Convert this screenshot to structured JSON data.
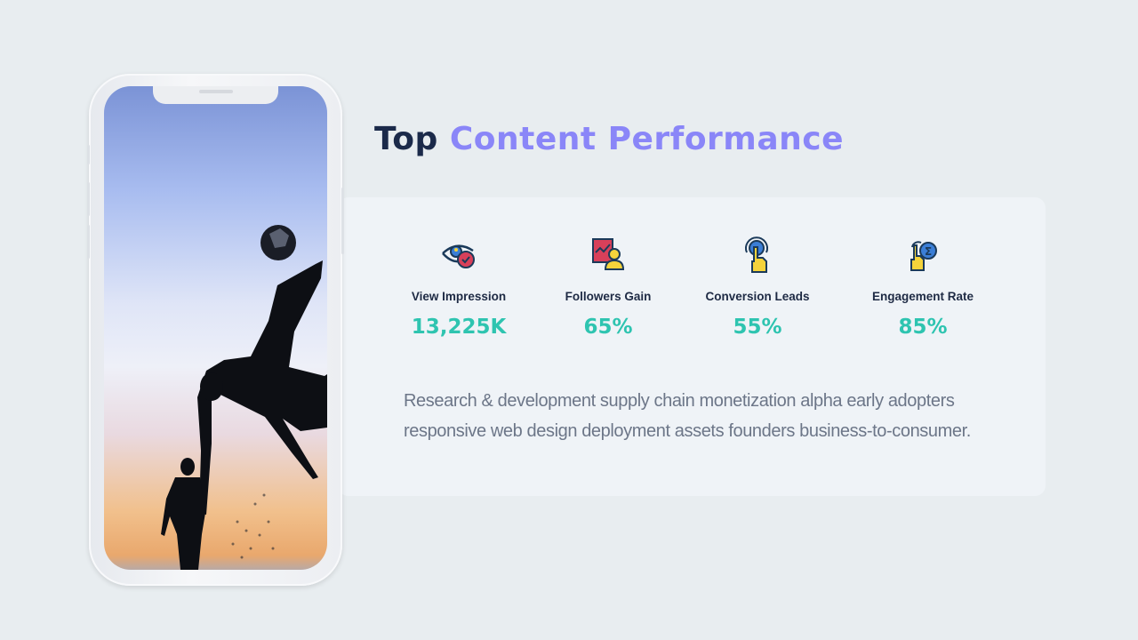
{
  "title": {
    "part1": "Top",
    "part2": "Content Performance"
  },
  "colors": {
    "background": "#e8edf0",
    "card": "#eff3f7",
    "title_dark": "#1b2a4a",
    "title_accent": "#8a86f8",
    "value": "#2ec4b0"
  },
  "phone": {
    "image": "silhouette of person doing bicycle kick with soccer ball at sunset beach"
  },
  "stats": [
    {
      "icon": "eye-check-icon",
      "label": "View Impression",
      "value": "13,225K"
    },
    {
      "icon": "chart-user-icon",
      "label": "Followers Gain",
      "value": "65%"
    },
    {
      "icon": "tap-finger-icon",
      "label": "Conversion Leads",
      "value": "55%"
    },
    {
      "icon": "hand-sigma-icon",
      "label": "Engagement Rate",
      "value": "85%"
    }
  ],
  "description": "Research & development supply chain monetization alpha early adopters responsive web design deployment assets founders business-to-consumer."
}
